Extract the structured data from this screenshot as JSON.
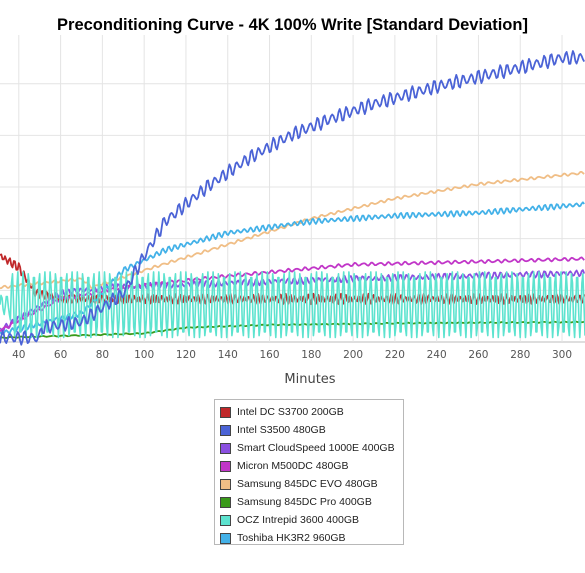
{
  "chart_data": {
    "type": "line",
    "title": "Preconditioning Curve - 4K 100% Write [Standard Deviation]",
    "xlabel": "Minutes",
    "ylabel": "",
    "x_ticks": [
      40,
      60,
      80,
      100,
      120,
      140,
      160,
      180,
      200,
      220,
      240,
      260,
      280,
      300
    ],
    "xlim": [
      31,
      311
    ],
    "grid": true,
    "legend_position": "bottom-center",
    "series": [
      {
        "name": "Intel DC S3700 200GB",
        "color": "#c0282a",
        "shape": "noisy",
        "start_x": 31,
        "base": [
          [
            31,
            0.3
          ],
          [
            40,
            0.26
          ],
          [
            48,
            0.17
          ],
          [
            60,
            0.15
          ],
          [
            311,
            0.15
          ]
        ],
        "amp": 0.018,
        "period": 2.2,
        "start_gap": 0
      },
      {
        "name": "Intel S3500 480GB",
        "color": "#4b63d6",
        "shape": "noisy",
        "start_x": 31,
        "base": [
          [
            31,
            0.015
          ],
          [
            50,
            0.015
          ],
          [
            51,
            0.05
          ],
          [
            70,
            0.07
          ],
          [
            90,
            0.17
          ],
          [
            100,
            0.3
          ],
          [
            110,
            0.42
          ],
          [
            120,
            0.48
          ],
          [
            130,
            0.54
          ],
          [
            150,
            0.64
          ],
          [
            170,
            0.72
          ],
          [
            190,
            0.78
          ],
          [
            210,
            0.83
          ],
          [
            240,
            0.89
          ],
          [
            270,
            0.94
          ],
          [
            300,
            0.99
          ],
          [
            311,
            0.99
          ]
        ],
        "amp": 0.025,
        "period": 3.5,
        "start_gap": 0
      },
      {
        "name": "Smart CloudSpeed 1000E 400GB",
        "color": "#8a4fe0",
        "shape": "noisy",
        "start_x": 31,
        "base": [
          [
            31,
            0.04
          ],
          [
            60,
            0.17
          ],
          [
            80,
            0.19
          ],
          [
            120,
            0.2
          ],
          [
            200,
            0.22
          ],
          [
            311,
            0.24
          ]
        ],
        "amp": 0.012,
        "period": 3.0,
        "start_gap": 0
      },
      {
        "name": "Micron M500DC 480GB",
        "color": "#c136c8",
        "shape": "noisy",
        "start_x": 31,
        "base": [
          [
            31,
            0.04
          ],
          [
            60,
            0.15
          ],
          [
            90,
            0.19
          ],
          [
            140,
            0.23
          ],
          [
            200,
            0.27
          ],
          [
            260,
            0.28
          ],
          [
            311,
            0.29
          ]
        ],
        "amp": 0.006,
        "period": 4.0,
        "start_gap": 0
      },
      {
        "name": "Samsung 845DC EVO 480GB",
        "color": "#f0be86",
        "shape": "noisy",
        "start_x": 31,
        "base": [
          [
            31,
            0.19
          ],
          [
            70,
            0.22
          ],
          [
            75,
            0.19
          ],
          [
            100,
            0.25
          ],
          [
            140,
            0.34
          ],
          [
            180,
            0.43
          ],
          [
            220,
            0.5
          ],
          [
            260,
            0.55
          ],
          [
            311,
            0.59
          ]
        ],
        "amp": 0.005,
        "period": 4.0,
        "start_gap": 0
      },
      {
        "name": "Samsung 845DC Pro 400GB",
        "color": "#3a9a1a",
        "shape": "noisy",
        "start_x": 31,
        "base": [
          [
            31,
            0.015
          ],
          [
            100,
            0.03
          ],
          [
            120,
            0.05
          ],
          [
            160,
            0.06
          ],
          [
            220,
            0.065
          ],
          [
            311,
            0.07
          ]
        ],
        "amp": 0.002,
        "period": 5.0,
        "start_gap": 0
      },
      {
        "name": "OCZ Intrepid 3600 400GB",
        "color": "#5de3cf",
        "shape": "osc",
        "start_x": 31,
        "base": [
          [
            31,
            0.13
          ],
          [
            311,
            0.13
          ]
        ],
        "amp": 0.115,
        "period": 2.6,
        "start_gap": 0
      },
      {
        "name": "Toshiba HK3R2 960GB",
        "color": "#43b1e8",
        "shape": "noisy",
        "start_x": 31,
        "base": [
          [
            31,
            0.03
          ],
          [
            70,
            0.1
          ],
          [
            80,
            0.17
          ],
          [
            90,
            0.25
          ],
          [
            110,
            0.32
          ],
          [
            140,
            0.38
          ],
          [
            180,
            0.42
          ],
          [
            220,
            0.44
          ],
          [
            260,
            0.45
          ],
          [
            311,
            0.48
          ]
        ],
        "amp": 0.01,
        "period": 3.0,
        "start_gap": 0
      }
    ]
  }
}
